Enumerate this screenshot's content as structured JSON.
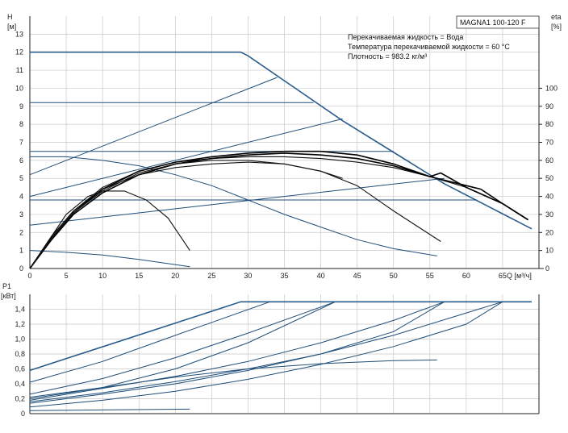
{
  "chart_data": [
    {
      "type": "line",
      "title": "MAGNA1 100-120 F",
      "info_lines": [
        "Перекачиваемая жидкость = Вода",
        "Температура перекачиваемой жидкости = 60 °C",
        "Плотность = 983.2 кг/м³"
      ],
      "xlabel": "Q [м³/ч]",
      "ylabel": [
        "H",
        "[м]"
      ],
      "y2label": [
        "eta",
        "[%]"
      ],
      "xlim": [
        0,
        70
      ],
      "ylim": [
        0,
        14
      ],
      "y2lim": [
        0,
        140
      ],
      "xticks": [
        0,
        5,
        10,
        15,
        20,
        25,
        30,
        35,
        40,
        45,
        50,
        55,
        60,
        65
      ],
      "yticks": [
        0,
        1,
        2,
        3,
        4,
        5,
        6,
        7,
        8,
        9,
        10,
        11,
        12,
        13
      ],
      "y2ticks": [
        0,
        10,
        20,
        30,
        40,
        50,
        60,
        70,
        80,
        90,
        100
      ],
      "series": [
        {
          "kind": "performance",
          "x": [
            0,
            29,
            30,
            43,
            57,
            69
          ],
          "y": [
            12,
            12,
            11.8,
            8.2,
            4.7,
            2.2
          ]
        },
        {
          "kind": "constant-pressure",
          "x": [
            0,
            39
          ],
          "y": [
            9.2,
            9.2
          ]
        },
        {
          "kind": "constant-pressure",
          "x": [
            0,
            50
          ],
          "y": [
            6.5,
            6.5
          ]
        },
        {
          "kind": "constant-pressure",
          "x": [
            0,
            61.5
          ],
          "y": [
            3.8,
            3.8
          ]
        },
        {
          "kind": "proportional-pressure",
          "x": [
            0,
            34
          ],
          "y": [
            5.2,
            10.6
          ]
        },
        {
          "kind": "proportional-pressure",
          "x": [
            0,
            43
          ],
          "y": [
            4.0,
            8.3
          ]
        },
        {
          "kind": "proportional-pressure",
          "x": [
            0,
            57
          ],
          "y": [
            2.4,
            5.0
          ]
        },
        {
          "kind": "constant-curve",
          "x": [
            0,
            5,
            10,
            15,
            20,
            25,
            30,
            35,
            40,
            45,
            50,
            56
          ],
          "y": [
            6.2,
            6.2,
            6.0,
            5.7,
            5.2,
            4.6,
            3.8,
            3.0,
            2.3,
            1.6,
            1.1,
            0.7
          ]
        },
        {
          "kind": "constant-curve",
          "x": [
            0,
            5,
            10,
            15,
            22
          ],
          "y": [
            1.0,
            0.9,
            0.75,
            0.5,
            0.1
          ]
        },
        {
          "kind": "efficiency",
          "x": [
            0,
            2,
            5,
            8,
            10,
            13,
            16,
            19,
            22
          ],
          "y": [
            0,
            12,
            30,
            40,
            43,
            43,
            38,
            28,
            10
          ]
        },
        {
          "kind": "efficiency",
          "x": [
            0,
            3,
            6,
            10,
            15,
            20,
            25,
            30,
            35,
            40,
            45,
            50,
            56.5
          ],
          "y": [
            0,
            18,
            32,
            44,
            52,
            56,
            58,
            59,
            58,
            54,
            46,
            32,
            15
          ]
        },
        {
          "kind": "efficiency",
          "x": [
            0,
            3,
            6,
            10,
            15,
            20,
            25,
            30,
            35,
            40,
            45,
            50,
            55,
            60,
            65,
            68.5
          ],
          "y": [
            0,
            18,
            32,
            45,
            54,
            59,
            61,
            62,
            62,
            61,
            59,
            56,
            51,
            45,
            36,
            27
          ]
        },
        {
          "kind": "efficiency",
          "x": [
            0,
            3,
            6,
            10,
            15,
            20,
            25,
            30,
            35,
            40,
            45,
            50,
            55,
            60,
            62,
            65,
            68.5
          ],
          "y": [
            0,
            17,
            31,
            44,
            54,
            59,
            62,
            64,
            65,
            65,
            63,
            58,
            51,
            46,
            44,
            36,
            27
          ]
        },
        {
          "kind": "efficiency",
          "x": [
            0,
            3,
            6,
            10,
            15,
            20,
            25,
            30,
            35,
            40,
            45,
            50,
            55,
            56.5,
            60,
            65,
            68.5
          ],
          "y": [
            0,
            16,
            30,
            42,
            52,
            58,
            61,
            63,
            64,
            63,
            61,
            57,
            51,
            53,
            45,
            36,
            27
          ]
        },
        {
          "kind": "efficiency",
          "x": [
            0,
            3,
            6,
            10,
            15,
            20,
            25,
            30,
            35,
            40,
            43
          ],
          "y": [
            0,
            17,
            31,
            43,
            53,
            58,
            60,
            60,
            58,
            54,
            50
          ]
        }
      ]
    },
    {
      "type": "line",
      "ylabel": [
        "P1",
        "[кВт]"
      ],
      "xlim": [
        0,
        70
      ],
      "ylim": [
        0,
        1.6
      ],
      "yticks": [
        "0",
        "0,2",
        "0,4",
        "0,6",
        "0,8",
        "1,0",
        "1,2",
        "1,4"
      ],
      "ytick_values": [
        0,
        0.2,
        0.4,
        0.6,
        0.8,
        1.0,
        1.2,
        1.4
      ],
      "series": [
        {
          "kind": "performance-power",
          "x": [
            0,
            29,
            69
          ],
          "y": [
            0.58,
            1.5,
            1.5
          ]
        },
        {
          "kind": "power",
          "x": [
            0,
            10,
            20,
            33
          ],
          "y": [
            0.42,
            0.7,
            1.05,
            1.5
          ]
        },
        {
          "kind": "power",
          "x": [
            0,
            10,
            20,
            30,
            42
          ],
          "y": [
            0.26,
            0.47,
            0.75,
            1.08,
            1.5
          ]
        },
        {
          "kind": "power",
          "x": [
            0,
            10,
            20,
            30,
            42
          ],
          "y": [
            0.2,
            0.35,
            0.6,
            0.95,
            1.5
          ]
        },
        {
          "kind": "power",
          "x": [
            0,
            10,
            20,
            30,
            40,
            50,
            57
          ],
          "y": [
            0.18,
            0.34,
            0.5,
            0.7,
            0.95,
            1.25,
            1.5
          ]
        },
        {
          "kind": "power",
          "x": [
            0,
            10,
            20,
            30,
            40,
            50,
            57
          ],
          "y": [
            0.14,
            0.26,
            0.4,
            0.58,
            0.8,
            1.1,
            1.5
          ]
        },
        {
          "kind": "power",
          "x": [
            0,
            10,
            20,
            30,
            40,
            50,
            60,
            65
          ],
          "y": [
            0.16,
            0.28,
            0.43,
            0.6,
            0.8,
            1.05,
            1.35,
            1.5
          ]
        },
        {
          "kind": "power",
          "x": [
            0,
            10,
            20,
            30,
            40,
            50,
            60,
            65
          ],
          "y": [
            0.09,
            0.18,
            0.3,
            0.46,
            0.66,
            0.9,
            1.2,
            1.5
          ]
        },
        {
          "kind": "power",
          "x": [
            0,
            10,
            20,
            30,
            40,
            50,
            56
          ],
          "y": [
            0.22,
            0.35,
            0.49,
            0.6,
            0.67,
            0.71,
            0.72
          ]
        },
        {
          "kind": "power",
          "x": [
            0,
            10,
            22
          ],
          "y": [
            0.04,
            0.05,
            0.06
          ]
        }
      ]
    }
  ]
}
